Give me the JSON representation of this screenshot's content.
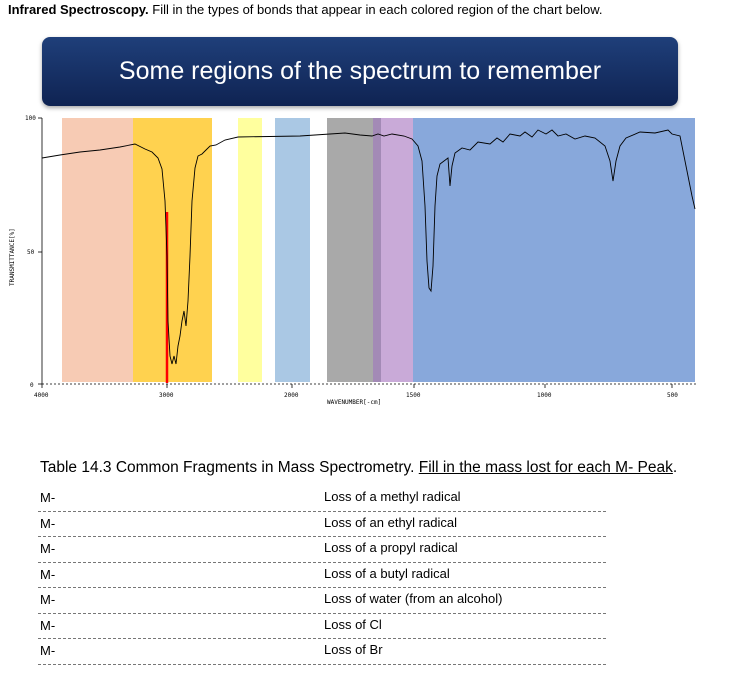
{
  "header": {
    "title_bold": "Infrared Spectroscopy.",
    "instruction": " Fill in the types of bonds that appear in each colored region of the chart below."
  },
  "banner": {
    "title": "Some regions of the spectrum to remember"
  },
  "chart": {
    "y_axis_label": "TRANSMITTANCE[%]",
    "x_axis_label": "WAVENUMBER[-cm]",
    "y_ticks": [
      "100",
      "50",
      "0"
    ],
    "x_ticks": [
      "4000",
      "3000",
      "2000",
      "1500",
      "1000",
      "500"
    ],
    "region_colors": [
      "#f7cbb4",
      "#ffd24f",
      "#ffff9e",
      "#aac8e4",
      "#a9a9a9",
      "#c9aad8",
      "#88a8db"
    ],
    "marker_color": "#ff0000"
  },
  "table": {
    "title_plain": "Table 14.3 Common Fragments in Mass Spectrometry.  ",
    "title_underlined": "Fill in the mass lost for each M- Peak",
    "title_end": ".",
    "rows": [
      {
        "m": "M-",
        "loss": "Loss of a methyl radical"
      },
      {
        "m": "M-",
        "loss": "Loss of an ethyl radical"
      },
      {
        "m": "M-",
        "loss": "Loss of a propyl radical"
      },
      {
        "m": "M-",
        "loss": "Loss of a butyl radical"
      },
      {
        "m": "M-",
        "loss": "Loss of water (from an alcohol)"
      },
      {
        "m": "M-",
        "loss": "Loss of Cl"
      },
      {
        "m": "M-",
        "loss": "Loss of Br"
      }
    ]
  }
}
